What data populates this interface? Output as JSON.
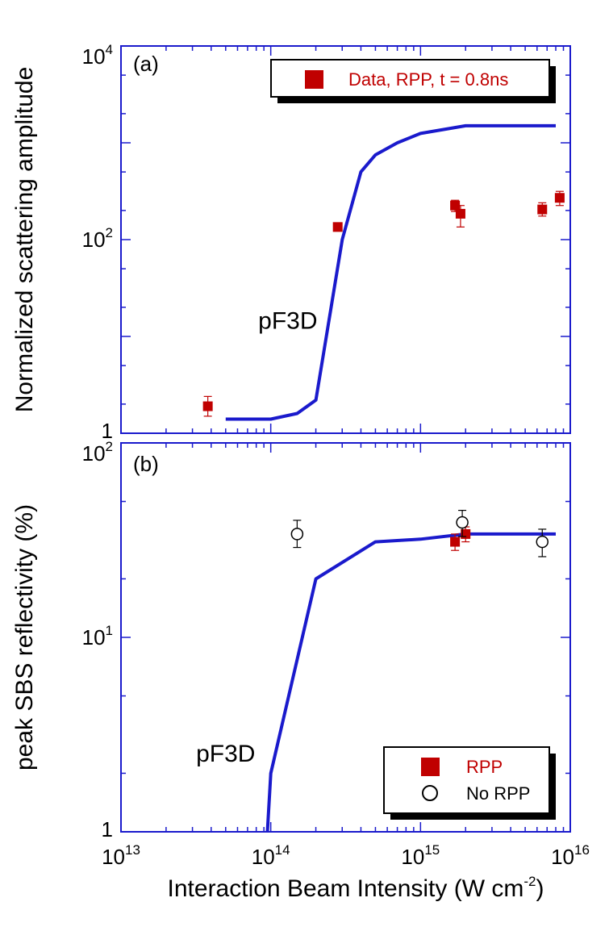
{
  "colors": {
    "model": "#1a1acc",
    "rpp": "#c00000",
    "frame": "#1a1acc",
    "text": "#000000"
  },
  "chart_data": [
    {
      "id": "a",
      "type": "scatter",
      "panel_label": "(a)",
      "ylabel": "Normalized scattering amplitude",
      "xscale": "log",
      "yscale": "log",
      "xlim": [
        10000000000000.0,
        1e+16
      ],
      "ylim": [
        1,
        10000
      ],
      "y_ticks": [
        {
          "base": "10",
          "exp": "4",
          "value": 10000
        },
        {
          "base": "10",
          "exp": "2",
          "value": 100
        },
        {
          "base": "1",
          "exp": "",
          "value": 1
        }
      ],
      "legend": {
        "position": "top-right",
        "items": [
          {
            "label": "Data, RPP, t = 0.8ns",
            "marker": "square"
          }
        ]
      },
      "annotation": {
        "text": "pF3D",
        "x": 130000000000000.0,
        "y": 12
      },
      "series": [
        {
          "name": "pF3D",
          "kind": "line",
          "x": [
            50000000000000.0,
            100000000000000.0,
            150000000000000.0,
            200000000000000.0,
            300000000000000.0,
            400000000000000.0,
            500000000000000.0,
            700000000000000.0,
            1000000000000000.0,
            2000000000000000.0,
            3000000000000000.0,
            5000000000000000.0,
            8000000000000000.0
          ],
          "y": [
            1.4,
            1.4,
            1.6,
            2.2,
            100,
            500,
            750,
            1000,
            1250,
            1500,
            1500,
            1500,
            1500
          ]
        },
        {
          "name": "Data, RPP, t = 0.8ns",
          "kind": "points",
          "points": [
            {
              "x": 38000000000000.0,
              "y": 1.9,
              "err": [
                1.5,
                2.4
              ]
            },
            {
              "x": 280000000000000.0,
              "y": 135
            },
            {
              "x": 1700000000000000.0,
              "y": 225,
              "err": [
                195,
                255
              ]
            },
            {
              "x": 1850000000000000.0,
              "y": 185,
              "err": [
                135,
                225
              ]
            },
            {
              "x": 6500000000000000.0,
              "y": 205,
              "err": [
                175,
                240
              ]
            },
            {
              "x": 8500000000000000.0,
              "y": 270,
              "err": [
                225,
                315
              ]
            }
          ]
        }
      ]
    },
    {
      "id": "b",
      "type": "scatter",
      "panel_label": "(b)",
      "ylabel": "peak SBS reflectivity (%)",
      "xlabel": "Interaction Beam Intensity (W cm",
      "xlabel_exp": "-2",
      "xlabel_end": ")",
      "xscale": "log",
      "yscale": "log",
      "xlim": [
        10000000000000.0,
        1e+16
      ],
      "ylim": [
        1,
        100
      ],
      "x_ticks": [
        {
          "base": "10",
          "exp": "13",
          "value": 10000000000000.0
        },
        {
          "base": "10",
          "exp": "14",
          "value": 100000000000000.0
        },
        {
          "base": "10",
          "exp": "15",
          "value": 1000000000000000.0
        },
        {
          "base": "10",
          "exp": "16",
          "value": 1e+16
        }
      ],
      "y_ticks": [
        {
          "base": "10",
          "exp": "2",
          "value": 100
        },
        {
          "base": "10",
          "exp": "1",
          "value": 10
        },
        {
          "base": "1",
          "exp": "",
          "value": 1
        }
      ],
      "legend": {
        "position": "bottom-right",
        "items": [
          {
            "label": "RPP",
            "marker": "square"
          },
          {
            "label": "No RPP",
            "marker": "circle"
          }
        ]
      },
      "annotation": {
        "text": "pF3D",
        "x": 50000000000000.0,
        "y": 2.3
      },
      "series": [
        {
          "name": "pF3D",
          "kind": "line",
          "x": [
            95000000000000.0,
            100000000000000.0,
            200000000000000.0,
            500000000000000.0,
            1000000000000000.0,
            2000000000000000.0,
            4000000000000000.0,
            8000000000000000.0
          ],
          "y": [
            1,
            2,
            20,
            31,
            32,
            34,
            34,
            34
          ]
        },
        {
          "name": "RPP",
          "kind": "points",
          "points": [
            {
              "x": 1700000000000000.0,
              "y": 31,
              "err": [
                28,
                34
              ]
            },
            {
              "x": 2000000000000000.0,
              "y": 34,
              "err": [
                31,
                37
              ]
            }
          ]
        },
        {
          "name": "No RPP",
          "kind": "points",
          "points": [
            {
              "x": 150000000000000.0,
              "y": 34,
              "err": [
                29,
                40
              ]
            },
            {
              "x": 1900000000000000.0,
              "y": 39,
              "err": [
                33,
                45
              ]
            },
            {
              "x": 6500000000000000.0,
              "y": 31,
              "err": [
                26,
                36
              ]
            }
          ]
        }
      ]
    }
  ]
}
